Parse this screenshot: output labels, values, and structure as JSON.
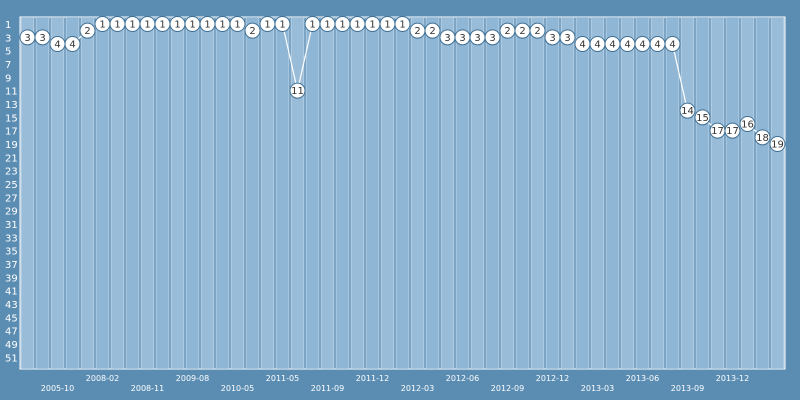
{
  "chart_data": {
    "type": "line",
    "title": "",
    "xlabel": "",
    "ylabel": "",
    "y_axis_inverted": true,
    "ylim": [
      1,
      52
    ],
    "y_tick_labels": [
      "1",
      "3",
      "5",
      "7",
      "9",
      "11",
      "13",
      "15",
      "17",
      "19",
      "21",
      "23",
      "25",
      "27",
      "29",
      "31",
      "33",
      "35",
      "37",
      "39",
      "41",
      "43",
      "45",
      "47",
      "49",
      "51"
    ],
    "x_tick_labels": [
      {
        "index": 2,
        "label": "2005-10"
      },
      {
        "index": 5,
        "label": "2008-02"
      },
      {
        "index": 8,
        "label": "2008-11"
      },
      {
        "index": 11,
        "label": "2009-08"
      },
      {
        "index": 14,
        "label": "2010-05"
      },
      {
        "index": 17,
        "label": "2011-05"
      },
      {
        "index": 20,
        "label": "2011-09"
      },
      {
        "index": 23,
        "label": "2011-12"
      },
      {
        "index": 26,
        "label": "2012-03"
      },
      {
        "index": 29,
        "label": "2012-06"
      },
      {
        "index": 32,
        "label": "2012-09"
      },
      {
        "index": 35,
        "label": "2012-12"
      },
      {
        "index": 38,
        "label": "2013-03"
      },
      {
        "index": 41,
        "label": "2013-06"
      },
      {
        "index": 44,
        "label": "2013-09"
      },
      {
        "index": 47,
        "label": "2013-12"
      }
    ],
    "series": [
      {
        "values": [
          3,
          3,
          4,
          4,
          2,
          1,
          1,
          1,
          1,
          1,
          1,
          1,
          1,
          1,
          1,
          2,
          1,
          1,
          11,
          1,
          1,
          1,
          1,
          1,
          1,
          1,
          2,
          2,
          3,
          3,
          3,
          3,
          2,
          2,
          2,
          3,
          3,
          4,
          4,
          4,
          4,
          4,
          4,
          4,
          14,
          15,
          17,
          17,
          16,
          18,
          19
        ]
      }
    ],
    "colors": {
      "background": "#5b8db3",
      "band_light": "#99bdd9",
      "band_dark": "#5b8db3",
      "line": "#ffffff",
      "marker_fill": "#ffffff",
      "marker_stroke": "#3f6f94",
      "text": "#ffffff"
    },
    "grid": false,
    "legend": "none"
  }
}
